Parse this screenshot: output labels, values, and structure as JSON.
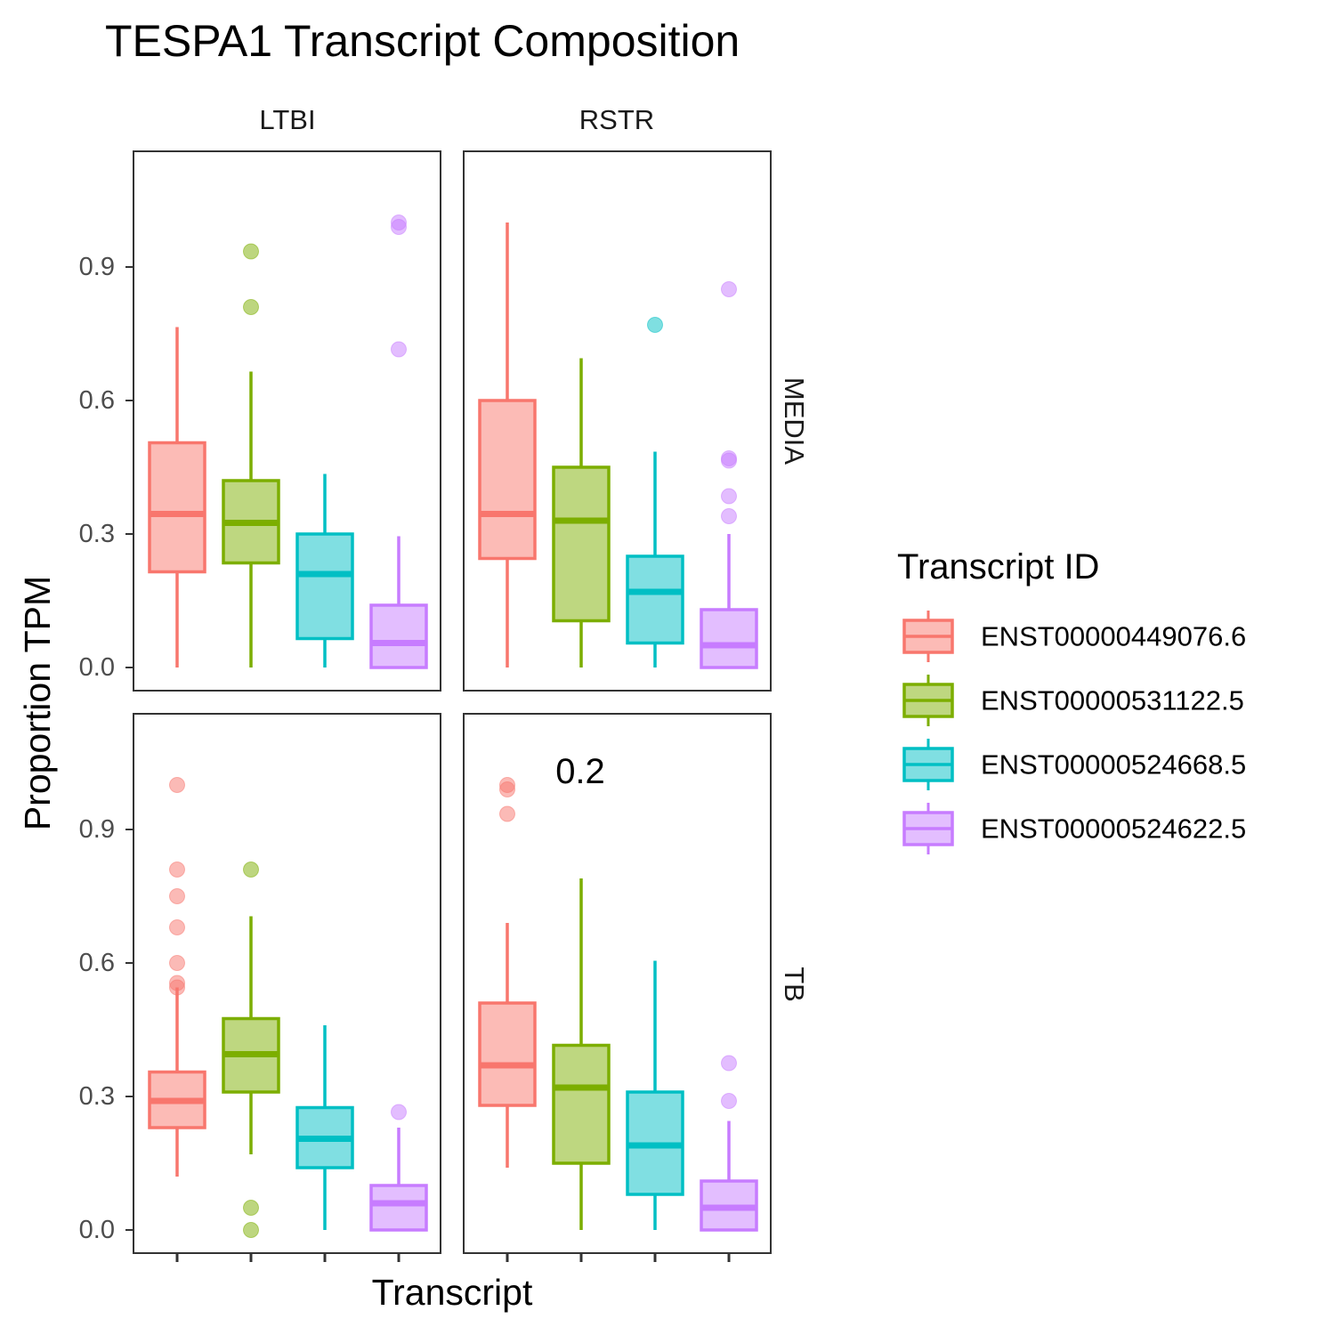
{
  "chart_data": {
    "type": "boxplot",
    "title": "TESPA1 Transcript Composition",
    "xlabel": "Transcript",
    "ylabel": "Proportion TPM",
    "ylim": [
      -0.05,
      1.15
    ],
    "yticks": [
      "0.0",
      "0.3",
      "0.6",
      "0.9"
    ],
    "columns": [
      "LTBI",
      "RSTR"
    ],
    "rows": [
      "MEDIA",
      "TB"
    ],
    "grid": false,
    "legend": {
      "title": "Transcript ID",
      "position": "right",
      "entries": [
        {
          "label": "ENST00000449076.6",
          "color": "#F8766D"
        },
        {
          "label": "ENST00000531122.5",
          "color": "#7CAE00"
        },
        {
          "label": "ENST00000524668.5",
          "color": "#00BFC4"
        },
        {
          "label": "ENST00000524622.5",
          "color": "#C77CFF"
        }
      ]
    },
    "panels": [
      {
        "column": "LTBI",
        "row": "MEDIA",
        "annotation": "",
        "boxes": [
          {
            "transcript": "ENST00000449076.6",
            "lower": 0.0,
            "q1": 0.215,
            "median": 0.345,
            "q3": 0.505,
            "upper": 0.765,
            "outliers": []
          },
          {
            "transcript": "ENST00000531122.5",
            "lower": 0.0,
            "q1": 0.235,
            "median": 0.325,
            "q3": 0.42,
            "upper": 0.665,
            "outliers": [
              0.935,
              0.81
            ]
          },
          {
            "transcript": "ENST00000524668.5",
            "lower": 0.0,
            "q1": 0.065,
            "median": 0.21,
            "q3": 0.3,
            "upper": 0.435,
            "outliers": []
          },
          {
            "transcript": "ENST00000524622.5",
            "lower": 0.0,
            "q1": 0.0,
            "median": 0.055,
            "q3": 0.14,
            "upper": 0.295,
            "outliers": [
              1.0,
              0.99,
              0.715
            ]
          }
        ]
      },
      {
        "column": "RSTR",
        "row": "MEDIA",
        "annotation": "",
        "boxes": [
          {
            "transcript": "ENST00000449076.6",
            "lower": 0.0,
            "q1": 0.245,
            "median": 0.345,
            "q3": 0.6,
            "upper": 1.0,
            "outliers": []
          },
          {
            "transcript": "ENST00000531122.5",
            "lower": 0.0,
            "q1": 0.105,
            "median": 0.33,
            "q3": 0.45,
            "upper": 0.695,
            "outliers": []
          },
          {
            "transcript": "ENST00000524668.5",
            "lower": 0.0,
            "q1": 0.055,
            "median": 0.17,
            "q3": 0.25,
            "upper": 0.485,
            "outliers": [
              0.77
            ]
          },
          {
            "transcript": "ENST00000524622.5",
            "lower": 0.0,
            "q1": 0.0,
            "median": 0.05,
            "q3": 0.13,
            "upper": 0.3,
            "outliers": [
              0.85,
              0.47,
              0.465,
              0.385,
              0.34
            ]
          }
        ]
      },
      {
        "column": "LTBI",
        "row": "TB",
        "annotation": "",
        "boxes": [
          {
            "transcript": "ENST00000449076.6",
            "lower": 0.12,
            "q1": 0.23,
            "median": 0.29,
            "q3": 0.355,
            "upper": 0.545,
            "outliers": [
              1.0,
              0.81,
              0.75,
              0.68,
              0.6,
              0.555,
              0.545
            ]
          },
          {
            "transcript": "ENST00000531122.5",
            "lower": 0.17,
            "q1": 0.31,
            "median": 0.395,
            "q3": 0.475,
            "upper": 0.705,
            "outliers": [
              0.81,
              0.05,
              0.0
            ]
          },
          {
            "transcript": "ENST00000524668.5",
            "lower": 0.0,
            "q1": 0.14,
            "median": 0.205,
            "q3": 0.275,
            "upper": 0.46,
            "outliers": []
          },
          {
            "transcript": "ENST00000524622.5",
            "lower": 0.0,
            "q1": 0.0,
            "median": 0.06,
            "q3": 0.1,
            "upper": 0.23,
            "outliers": [
              0.265
            ]
          }
        ]
      },
      {
        "column": "RSTR",
        "row": "TB",
        "annotation": "0.2",
        "boxes": [
          {
            "transcript": "ENST00000449076.6",
            "lower": 0.14,
            "q1": 0.28,
            "median": 0.37,
            "q3": 0.51,
            "upper": 0.69,
            "outliers": [
              1.0,
              0.99,
              0.935
            ]
          },
          {
            "transcript": "ENST00000531122.5",
            "lower": 0.0,
            "q1": 0.15,
            "median": 0.32,
            "q3": 0.415,
            "upper": 0.79,
            "outliers": []
          },
          {
            "transcript": "ENST00000524668.5",
            "lower": 0.0,
            "q1": 0.08,
            "median": 0.19,
            "q3": 0.31,
            "upper": 0.605,
            "outliers": []
          },
          {
            "transcript": "ENST00000524622.5",
            "lower": 0.0,
            "q1": 0.0,
            "median": 0.05,
            "q3": 0.11,
            "upper": 0.245,
            "outliers": [
              0.375,
              0.29
            ]
          }
        ]
      }
    ]
  }
}
